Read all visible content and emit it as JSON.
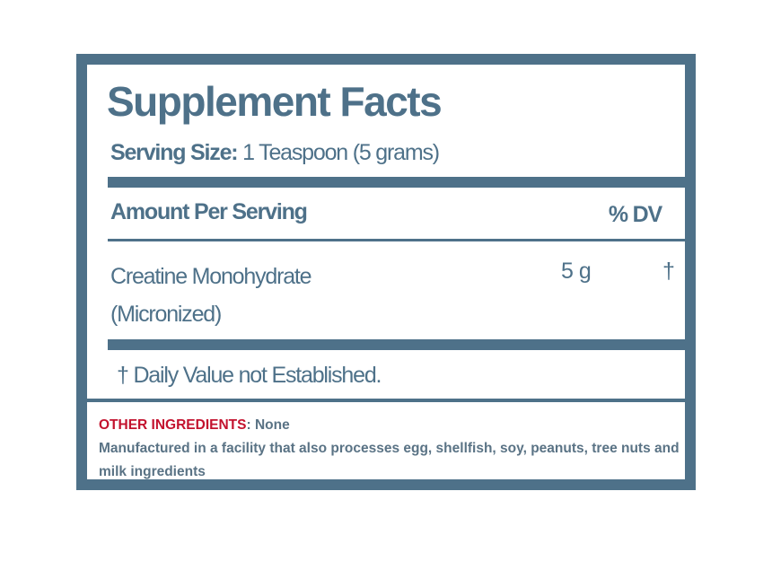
{
  "label": {
    "title": "Supplement Facts",
    "serving_size_label": "Serving Size:",
    "serving_size_value": " 1 Teaspoon (5 grams)",
    "amount_per_serving": "Amount Per Serving",
    "dv_header": "% DV",
    "ingredients": [
      {
        "name_line1": "Creatine Monohydrate",
        "name_line2": "(Micronized)",
        "amount": "5 g",
        "dv": "†"
      }
    ],
    "footnote": "† Daily Value not Established.",
    "other_ingredients_label": "OTHER INGREDIENTS",
    "other_ingredients_value": ": None",
    "allergen_notice": "Manufactured in a facility that also processes egg, shellfish, soy, peanuts, tree nuts and milk ingredients"
  },
  "colors": {
    "primary": "#4e7189",
    "accent_red": "#c3122e",
    "notice_text": "#5a7385",
    "background": "#ffffff"
  }
}
